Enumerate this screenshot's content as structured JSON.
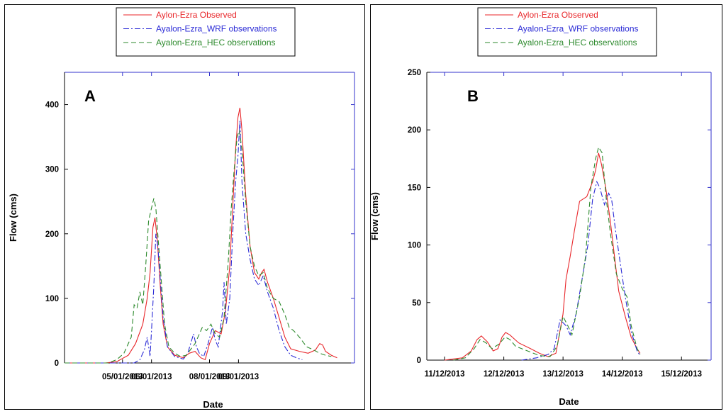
{
  "chart_data": [
    {
      "type": "line",
      "panel_label": "A",
      "xlabel": "Date",
      "ylabel": "Flow (cms)",
      "x_tick_labels": [
        "05/01/2013",
        "06/01/2013",
        "08/01/2013",
        "09/01/2013"
      ],
      "x_tick_positions": [
        2,
        3,
        5,
        6
      ],
      "xlim": [
        0,
        10
      ],
      "ylim": [
        0,
        450
      ],
      "y_ticks": [
        0,
        100,
        200,
        300,
        400
      ],
      "legend_position": "top-center",
      "series": [
        {
          "name": "Aylon-Ezra Observed",
          "color": "#e8262a",
          "dash": "solid",
          "points": [
            [
              0,
              0
            ],
            [
              1.4,
              0
            ],
            [
              1.8,
              2
            ],
            [
              2.2,
              12
            ],
            [
              2.45,
              30
            ],
            [
              2.7,
              60
            ],
            [
              2.85,
              100
            ],
            [
              2.95,
              140
            ],
            [
              3.05,
              210
            ],
            [
              3.12,
              225
            ],
            [
              3.2,
              190
            ],
            [
              3.3,
              120
            ],
            [
              3.4,
              60
            ],
            [
              3.55,
              25
            ],
            [
              3.8,
              12
            ],
            [
              4.1,
              8
            ],
            [
              4.3,
              15
            ],
            [
              4.5,
              18
            ],
            [
              4.7,
              8
            ],
            [
              4.85,
              5
            ],
            [
              5.0,
              30
            ],
            [
              5.2,
              50
            ],
            [
              5.4,
              45
            ],
            [
              5.55,
              80
            ],
            [
              5.7,
              150
            ],
            [
              5.8,
              240
            ],
            [
              5.9,
              330
            ],
            [
              5.98,
              380
            ],
            [
              6.05,
              395
            ],
            [
              6.12,
              360
            ],
            [
              6.25,
              260
            ],
            [
              6.4,
              180
            ],
            [
              6.55,
              140
            ],
            [
              6.7,
              130
            ],
            [
              6.8,
              140
            ],
            [
              6.88,
              145
            ],
            [
              7.0,
              125
            ],
            [
              7.2,
              100
            ],
            [
              7.4,
              70
            ],
            [
              7.6,
              40
            ],
            [
              7.8,
              22
            ],
            [
              8.1,
              18
            ],
            [
              8.4,
              15
            ],
            [
              8.65,
              20
            ],
            [
              8.8,
              30
            ],
            [
              8.9,
              28
            ],
            [
              9.0,
              18
            ],
            [
              9.2,
              12
            ],
            [
              9.4,
              8
            ]
          ]
        },
        {
          "name": "Ayalon-Ezra_WRF observations",
          "color": "#2b2bd6",
          "dash": "dashdot",
          "points": [
            [
              0,
              0
            ],
            [
              2.4,
              0
            ],
            [
              2.6,
              5
            ],
            [
              2.75,
              20
            ],
            [
              2.85,
              40
            ],
            [
              2.95,
              10
            ],
            [
              3.0,
              50
            ],
            [
              3.08,
              120
            ],
            [
              3.15,
              200
            ],
            [
              3.22,
              180
            ],
            [
              3.3,
              130
            ],
            [
              3.4,
              70
            ],
            [
              3.55,
              25
            ],
            [
              3.8,
              10
            ],
            [
              4.1,
              6
            ],
            [
              4.25,
              15
            ],
            [
              4.35,
              30
            ],
            [
              4.45,
              45
            ],
            [
              4.55,
              25
            ],
            [
              4.65,
              15
            ],
            [
              4.8,
              10
            ],
            [
              4.95,
              30
            ],
            [
              5.1,
              55
            ],
            [
              5.2,
              35
            ],
            [
              5.3,
              25
            ],
            [
              5.45,
              80
            ],
            [
              5.5,
              125
            ],
            [
              5.58,
              60
            ],
            [
              5.7,
              100
            ],
            [
              5.8,
              200
            ],
            [
              5.9,
              280
            ],
            [
              5.98,
              320
            ],
            [
              6.05,
              375
            ],
            [
              6.12,
              280
            ],
            [
              6.25,
              200
            ],
            [
              6.4,
              160
            ],
            [
              6.55,
              130
            ],
            [
              6.7,
              120
            ],
            [
              6.85,
              135
            ],
            [
              7.0,
              110
            ],
            [
              7.2,
              85
            ],
            [
              7.4,
              50
            ],
            [
              7.6,
              25
            ],
            [
              7.8,
              12
            ],
            [
              8.0,
              8
            ],
            [
              8.2,
              5
            ]
          ]
        },
        {
          "name": "Ayalon-Ezra_HEC observations",
          "color": "#2d8a2d",
          "dash": "dashed",
          "points": [
            [
              0,
              0
            ],
            [
              1.5,
              0
            ],
            [
              1.8,
              5
            ],
            [
              2.05,
              15
            ],
            [
              2.3,
              40
            ],
            [
              2.4,
              90
            ],
            [
              2.5,
              85
            ],
            [
              2.6,
              110
            ],
            [
              2.7,
              90
            ],
            [
              2.8,
              150
            ],
            [
              2.9,
              220
            ],
            [
              3.0,
              240
            ],
            [
              3.08,
              255
            ],
            [
              3.15,
              240
            ],
            [
              3.25,
              180
            ],
            [
              3.35,
              120
            ],
            [
              3.45,
              60
            ],
            [
              3.6,
              25
            ],
            [
              3.8,
              15
            ],
            [
              4.0,
              10
            ],
            [
              4.2,
              12
            ],
            [
              4.5,
              30
            ],
            [
              4.75,
              55
            ],
            [
              4.9,
              50
            ],
            [
              5.05,
              60
            ],
            [
              5.2,
              45
            ],
            [
              5.35,
              40
            ],
            [
              5.5,
              70
            ],
            [
              5.65,
              160
            ],
            [
              5.75,
              240
            ],
            [
              5.85,
              300
            ],
            [
              5.95,
              350
            ],
            [
              6.03,
              360
            ],
            [
              6.12,
              330
            ],
            [
              6.25,
              250
            ],
            [
              6.4,
              180
            ],
            [
              6.55,
              150
            ],
            [
              6.7,
              135
            ],
            [
              6.85,
              140
            ],
            [
              7.0,
              115
            ],
            [
              7.2,
              100
            ],
            [
              7.4,
              95
            ],
            [
              7.6,
              75
            ],
            [
              7.75,
              55
            ],
            [
              7.9,
              50
            ],
            [
              8.1,
              40
            ],
            [
              8.35,
              25
            ],
            [
              8.6,
              20
            ],
            [
              8.8,
              15
            ],
            [
              9.0,
              12
            ],
            [
              9.2,
              10
            ]
          ]
        }
      ]
    },
    {
      "type": "line",
      "panel_label": "B",
      "xlabel": "Date",
      "ylabel": "Flow (cms)",
      "x_tick_labels": [
        "11/12/2013",
        "12/12/2013",
        "13/12/2013",
        "14/12/2013",
        "15/12/2013"
      ],
      "x_tick_positions": [
        0,
        1,
        2,
        3,
        4
      ],
      "xlim": [
        -0.3,
        4.5
      ],
      "ylim": [
        0,
        250
      ],
      "y_ticks": [
        0,
        50,
        100,
        150,
        200,
        250
      ],
      "legend_position": "top-center",
      "series": [
        {
          "name": "Aylon-Ezra Observed",
          "color": "#e8262a",
          "dash": "solid",
          "points": [
            [
              0,
              0
            ],
            [
              0.3,
              2
            ],
            [
              0.45,
              8
            ],
            [
              0.55,
              18
            ],
            [
              0.62,
              21
            ],
            [
              0.72,
              16
            ],
            [
              0.82,
              8
            ],
            [
              0.9,
              10
            ],
            [
              0.97,
              20
            ],
            [
              1.03,
              24
            ],
            [
              1.1,
              22
            ],
            [
              1.25,
              15
            ],
            [
              1.45,
              10
            ],
            [
              1.6,
              6
            ],
            [
              1.75,
              3
            ],
            [
              1.88,
              6
            ],
            [
              2.0,
              40
            ],
            [
              2.05,
              70
            ],
            [
              2.12,
              90
            ],
            [
              2.2,
              115
            ],
            [
              2.28,
              138
            ],
            [
              2.4,
              142
            ],
            [
              2.5,
              155
            ],
            [
              2.55,
              165
            ],
            [
              2.6,
              180
            ],
            [
              2.65,
              170
            ],
            [
              2.72,
              150
            ],
            [
              2.8,
              120
            ],
            [
              2.88,
              85
            ],
            [
              2.94,
              60
            ],
            [
              3.05,
              38
            ],
            [
              3.15,
              20
            ],
            [
              3.25,
              10
            ],
            [
              3.3,
              6
            ]
          ]
        },
        {
          "name": "Ayalon-Ezra_WRF observations",
          "color": "#2b2bd6",
          "dash": "dashdot",
          "points": [
            [
              1.3,
              0
            ],
            [
              1.55,
              2
            ],
            [
              1.75,
              5
            ],
            [
              1.85,
              10
            ],
            [
              1.95,
              35
            ],
            [
              2.05,
              30
            ],
            [
              2.12,
              22
            ],
            [
              2.22,
              40
            ],
            [
              2.32,
              70
            ],
            [
              2.42,
              100
            ],
            [
              2.5,
              140
            ],
            [
              2.57,
              155
            ],
            [
              2.62,
              150
            ],
            [
              2.7,
              135
            ],
            [
              2.77,
              145
            ],
            [
              2.82,
              140
            ],
            [
              2.88,
              115
            ],
            [
              2.95,
              90
            ],
            [
              3.05,
              55
            ],
            [
              3.15,
              25
            ],
            [
              3.25,
              8
            ],
            [
              3.3,
              4
            ]
          ]
        },
        {
          "name": "Ayalon-Ezra_HEC observations",
          "color": "#2d8a2d",
          "dash": "dashed",
          "points": [
            [
              0.15,
              0
            ],
            [
              0.35,
              2
            ],
            [
              0.5,
              10
            ],
            [
              0.6,
              18
            ],
            [
              0.7,
              15
            ],
            [
              0.8,
              10
            ],
            [
              0.92,
              14
            ],
            [
              1.02,
              20
            ],
            [
              1.1,
              18
            ],
            [
              1.2,
              12
            ],
            [
              1.4,
              8
            ],
            [
              1.6,
              4
            ],
            [
              1.78,
              3
            ],
            [
              1.9,
              12
            ],
            [
              2.0,
              38
            ],
            [
              2.08,
              30
            ],
            [
              2.15,
              22
            ],
            [
              2.28,
              55
            ],
            [
              2.38,
              90
            ],
            [
              2.47,
              150
            ],
            [
              2.55,
              175
            ],
            [
              2.6,
              185
            ],
            [
              2.66,
              180
            ],
            [
              2.73,
              140
            ],
            [
              2.8,
              110
            ],
            [
              2.9,
              75
            ],
            [
              3.0,
              62
            ],
            [
              3.08,
              55
            ],
            [
              3.15,
              30
            ],
            [
              3.25,
              10
            ],
            [
              3.3,
              5
            ]
          ]
        }
      ]
    }
  ]
}
